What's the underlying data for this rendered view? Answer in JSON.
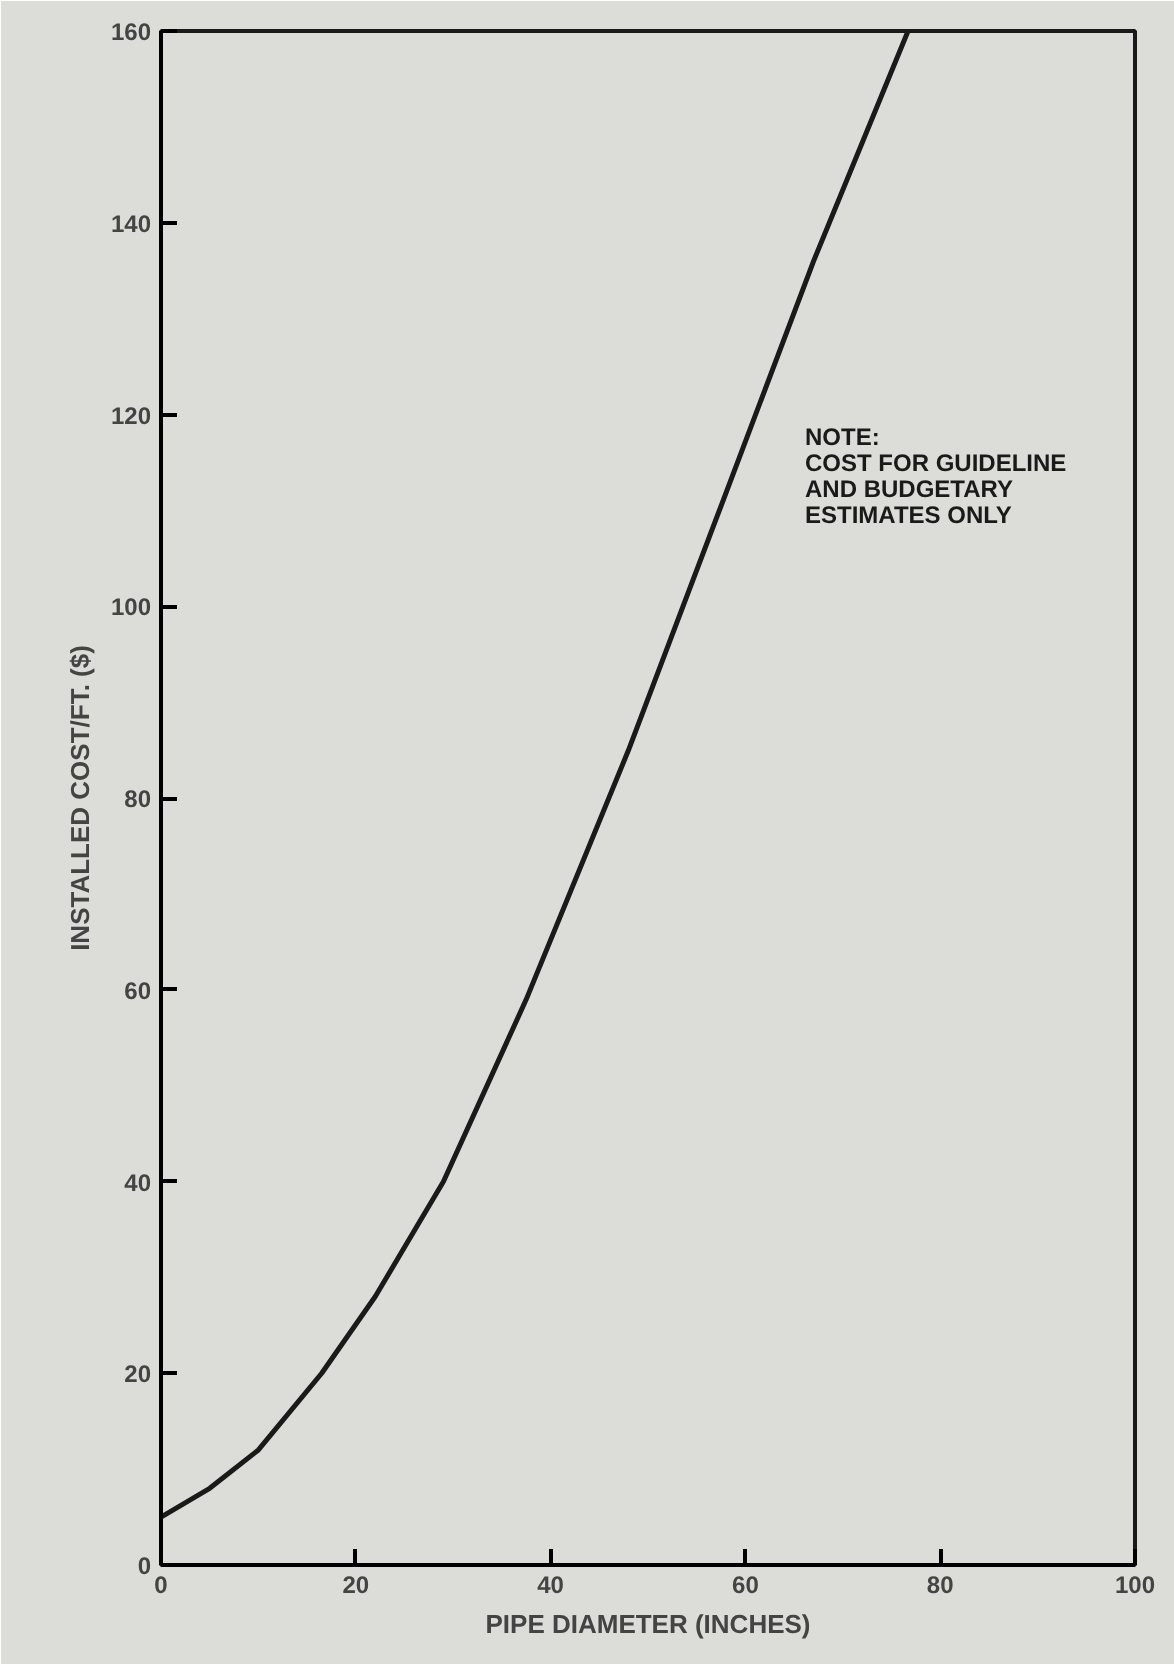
{
  "chart_data": {
    "type": "line",
    "xlabel": "PIPE DIAMETER (INCHES)",
    "ylabel": "INSTALLED COST/FT. ($)",
    "x": [
      0,
      5,
      10,
      16.5,
      22,
      29,
      37.5,
      48,
      57.7,
      67,
      76.7
    ],
    "series": [
      {
        "color": "#1a1a1a",
        "values": [
          5,
          8,
          12,
          20,
          28,
          40,
          59,
          85,
          111,
          136,
          160
        ]
      }
    ],
    "xlim": [
      0,
      100
    ],
    "ylim": [
      0,
      160
    ],
    "xticks": [
      0,
      20,
      40,
      60,
      80,
      100
    ],
    "yticks": [
      0,
      20,
      40,
      60,
      80,
      100,
      120,
      140,
      160
    ],
    "grid": false,
    "marker": "none",
    "line_style": "solid",
    "annotations": [
      "NOTE:\nCOST FOR GUIDELINE\nAND BUDGETARY\nESTIMATES ONLY"
    ]
  }
}
